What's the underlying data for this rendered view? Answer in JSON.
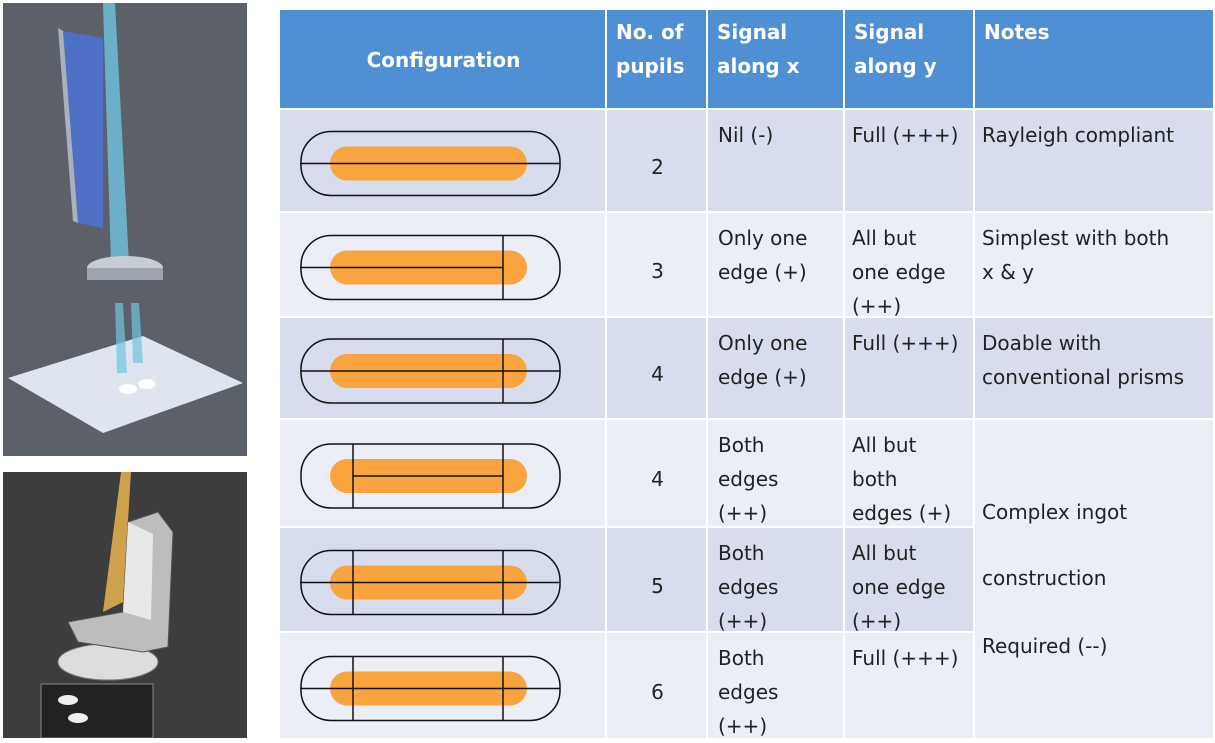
{
  "table": {
    "header": [
      [
        "Configuration"
      ],
      [
        "No. of",
        "pupils"
      ],
      [
        "Signal",
        "along x"
      ],
      [
        "Signal",
        "along y"
      ],
      [
        "Notes"
      ]
    ],
    "rows": [
      {
        "pupils": 2,
        "signal_x": [
          "Nil (-)"
        ],
        "signal_y": [
          "Full (+++)"
        ],
        "notes": [
          "Rayleigh compliant"
        ]
      },
      {
        "pupils": 3,
        "signal_x": [
          "Only one",
          "edge (+)"
        ],
        "signal_y": [
          "All but",
          "one edge",
          "(++)"
        ],
        "notes": [
          "Simplest with both",
          "x & y"
        ]
      },
      {
        "pupils": 4,
        "signal_x": [
          "Only one",
          "edge (+)"
        ],
        "signal_y": [
          "Full (+++)"
        ],
        "notes": [
          "Doable with",
          "conventional prisms"
        ]
      },
      {
        "pupils": 4,
        "signal_x": [
          "Both",
          "edges",
          "(++)"
        ],
        "signal_y": [
          "All but",
          "both",
          "edges (+)"
        ]
      },
      {
        "pupils": 5,
        "signal_x": [
          "Both",
          "edges",
          "(++)"
        ],
        "signal_y": [
          "All but",
          "one edge",
          "(++)"
        ]
      },
      {
        "pupils": 6,
        "signal_x": [
          "Both",
          "edges",
          "(++)"
        ],
        "signal_y": [
          "Full (+++)"
        ]
      }
    ],
    "merged_notes": [
      "Complex ingot",
      "construction",
      "Required (--)"
    ]
  }
}
